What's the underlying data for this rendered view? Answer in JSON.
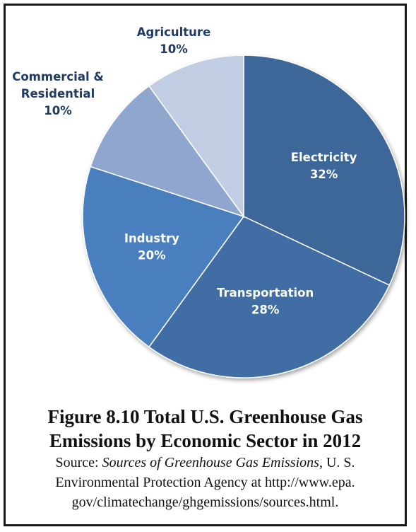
{
  "chart_data": {
    "type": "pie",
    "slices": [
      {
        "label": "Electricity",
        "value": 32,
        "value_label": "32%",
        "color": "#3c6699"
      },
      {
        "label": "Transportation",
        "value": 28,
        "value_label": "28%",
        "color": "#416ea4"
      },
      {
        "label": "Industry",
        "value": 20,
        "value_label": "20%",
        "color": "#4a7ebf"
      },
      {
        "label": "Commercial & Residential",
        "label_lines": [
          "Commercial &",
          "Residential"
        ],
        "value": 10,
        "value_label": "10%",
        "color": "#8fa6ce"
      },
      {
        "label": "Agriculture",
        "value": 10,
        "value_label": "10%",
        "color": "#c1cde3"
      }
    ],
    "start_angle_deg": 0,
    "direction": "clockwise",
    "inside_label_color": "#ffffff",
    "outside_label_color": "#1f3b66"
  },
  "caption": {
    "title_line1": "Figure 8.10 Total U.S. Greenhouse Gas",
    "title_line2": "Emissions by Economic Sector in 2012",
    "source_prefix": "Source: ",
    "source_title": "Sources of Greenhouse Gas Emissions",
    "source_line1_rest": ", U. S.",
    "source_line2": "Environmental Protection Agency at http://www.epa.",
    "source_line3": "gov/climatechange/ghgemissions/sources.html."
  }
}
